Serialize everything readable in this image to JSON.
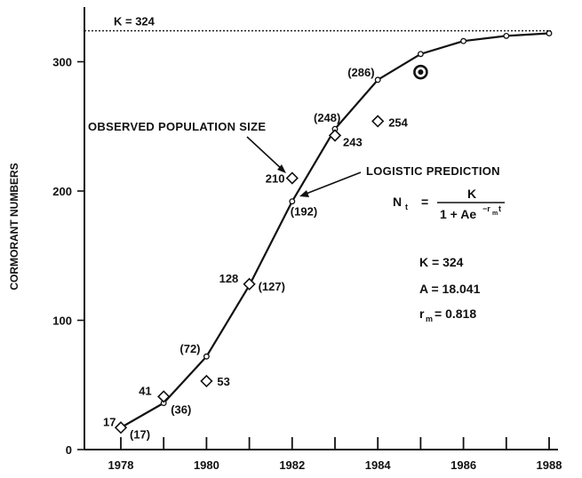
{
  "chart_data": {
    "type": "line",
    "ylabel": "CORMORANT NUMBERS",
    "xlabel": "",
    "title": "",
    "x_ticks": [
      1978,
      1980,
      1982,
      1984,
      1986,
      1988
    ],
    "y_ticks": [
      0,
      100,
      200,
      300
    ],
    "xlim": [
      1977,
      1989
    ],
    "ylim": [
      0,
      350
    ],
    "carrying_capacity": {
      "label": "K = 324",
      "value": 324
    },
    "series": [
      {
        "name": "LOGISTIC PREDICTION",
        "x": [
          1978,
          1979,
          1980,
          1981,
          1982,
          1983,
          1984,
          1985,
          1986,
          1987,
          1988
        ],
        "values": [
          17,
          36,
          72,
          127,
          192,
          248,
          286,
          306,
          316,
          320,
          322
        ],
        "point_labels": [
          "(17)",
          "(36)",
          "(72)",
          "(127)",
          "(192)",
          "(248)",
          "(286)",
          "",
          "",
          "",
          ""
        ]
      },
      {
        "name": "OBSERVED POPULATION SIZE",
        "x": [
          1978,
          1979,
          1980,
          1981,
          1982,
          1983,
          1984
        ],
        "values": [
          17,
          41,
          53,
          128,
          210,
          243,
          254
        ],
        "point_labels": [
          "17",
          "41",
          "53",
          "128",
          "210",
          "243",
          "254"
        ]
      }
    ],
    "extra_marker": {
      "x": 1985,
      "y": 292
    },
    "annotations": {
      "observed": "OBSERVED POPULATION SIZE",
      "logistic": "LOGISTIC PREDICTION"
    },
    "equation": {
      "lhs": "N",
      "lhs_sub": "t",
      "equals": "=",
      "numerator": "K",
      "denominator": "1 + Ae",
      "exponent": "−r",
      "exponent_sub": "m",
      "exponent_t": "t"
    },
    "parameters": {
      "k": "K = 324",
      "a": "A = 18.041",
      "r_label": "r",
      "r_sub": "m",
      "r_value": "= 0.818"
    }
  }
}
